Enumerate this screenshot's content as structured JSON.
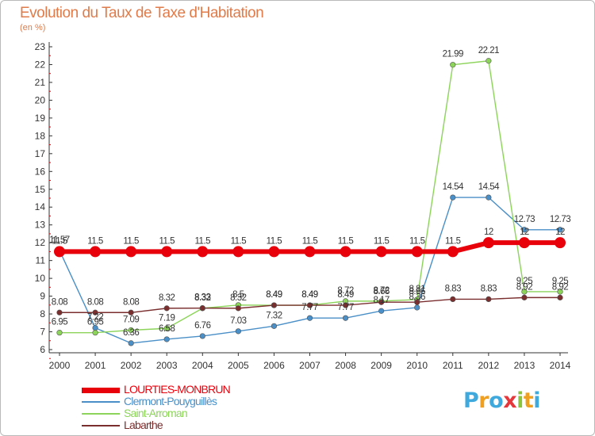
{
  "title": "Evolution du Taux de Taxe d'Habitation",
  "unit": "(en %)",
  "logo": {
    "letters": [
      "P",
      "r",
      "o",
      "x",
      "i",
      "t",
      "i"
    ],
    "colors": [
      "#3fa9dd",
      "#f0a020",
      "#3fa9dd",
      "#e4383c",
      "#8cc43f",
      "#f0a020",
      "#3fa9dd"
    ]
  },
  "chart_data": {
    "type": "line",
    "x": [
      "2000",
      "2001",
      "2002",
      "2003",
      "2004",
      "2005",
      "2006",
      "2007",
      "2008",
      "2009",
      "2010",
      "2011",
      "2012",
      "2013",
      "2014"
    ],
    "ylim": [
      6,
      23
    ],
    "yticks": [
      "6",
      "7",
      "8",
      "9",
      "10",
      "11",
      "12",
      "13",
      "14",
      "15",
      "16",
      "17",
      "18",
      "19",
      "20",
      "21",
      "22",
      "23"
    ],
    "grid": false,
    "legend_position": "bottom-left",
    "series": [
      {
        "name": "LOURTIES-MONBRUN",
        "color": "#e8000b",
        "values": [
          11.5,
          11.5,
          11.5,
          11.5,
          11.5,
          11.5,
          11.5,
          11.5,
          11.5,
          11.5,
          11.5,
          11.5,
          12,
          12,
          12
        ],
        "labels": [
          "11.5",
          "11.5",
          "11.5",
          "11.5",
          "11.5",
          "11.5",
          "11.5",
          "11.5",
          "11.5",
          "11.5",
          "11.5",
          "11.5",
          "12",
          "12",
          "12"
        ]
      },
      {
        "name": "Clermont-Pouyguillès",
        "color": "#4a8fc7",
        "values": [
          11.57,
          7.22,
          6.36,
          6.58,
          6.76,
          7.03,
          7.32,
          7.77,
          7.77,
          8.17,
          8.36,
          14.54,
          14.54,
          12.73,
          12.73
        ],
        "labels": [
          "11.57",
          "7.22",
          "6.36",
          "6.58",
          "6.76",
          "7.03",
          "7.32",
          "7.77",
          "7.77",
          "8.17",
          "8.36",
          "14.54",
          "14.54",
          "12.73",
          "12.73"
        ]
      },
      {
        "name": "Saint-Arroman",
        "color": "#8cd45a",
        "values": [
          6.95,
          6.95,
          7.09,
          7.19,
          8.32,
          8.5,
          8.49,
          8.49,
          8.72,
          8.72,
          8.81,
          21.99,
          22.21,
          9.25,
          9.25
        ],
        "labels": [
          "6.95",
          "6.95",
          "7.09",
          "7.19",
          "8.32",
          "8.5",
          "8.49",
          "8.49",
          "8.72",
          "8.72",
          "8.81",
          "21.99",
          "22.21",
          "9.25",
          "9.25"
        ]
      },
      {
        "name": "Labarthe",
        "color": "#7a2e2e",
        "values": [
          8.08,
          8.08,
          8.08,
          8.32,
          8.33,
          8.32,
          8.49,
          8.49,
          8.49,
          8.66,
          8.66,
          8.83,
          8.83,
          8.92,
          8.92
        ],
        "labels": [
          "8.08",
          "8.08",
          "8.08",
          "8.32",
          "8.33",
          "8.32",
          "8.49",
          "8.49",
          "8.49",
          "8.66",
          "8.66",
          "8.83",
          "8.83",
          "8.92",
          "8.92"
        ]
      }
    ]
  }
}
